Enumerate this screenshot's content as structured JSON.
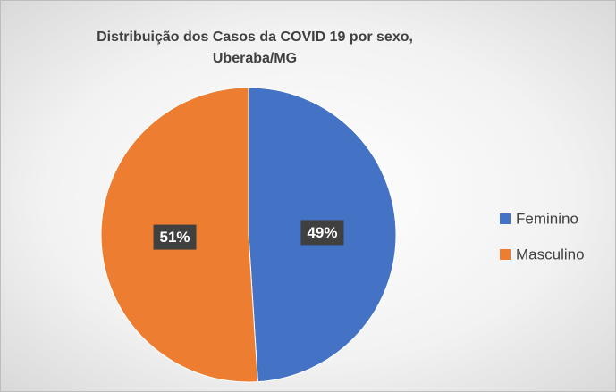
{
  "chart_data": {
    "type": "pie",
    "title": "Distribuição dos Casos da COVID 19 por sexo, Uberaba/MG",
    "categories": [
      "Feminino",
      "Masculino"
    ],
    "values": [
      49,
      51
    ],
    "value_labels": [
      "49%",
      "51%"
    ],
    "colors": [
      "#4472c4",
      "#ed7d31"
    ],
    "legend": "right"
  }
}
